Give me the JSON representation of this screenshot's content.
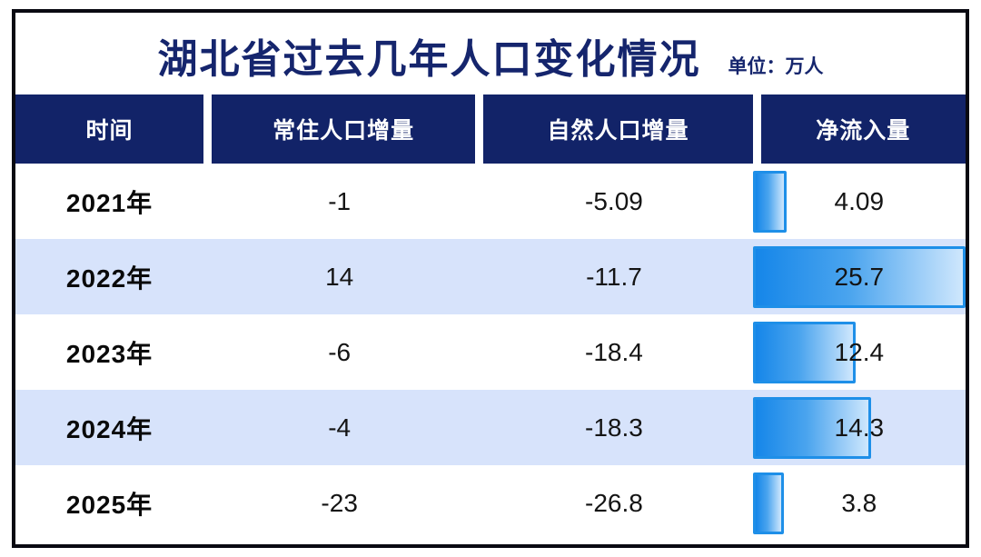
{
  "title_bar": {
    "title": "湖北省过去几年人口变化情况",
    "unit_label": "单位：万人"
  },
  "table": {
    "columns": [
      {
        "label": "时间"
      },
      {
        "label": "常住人口增量"
      },
      {
        "label": "自然人口增量"
      },
      {
        "label": "净流入量"
      }
    ],
    "rows": [
      {
        "year": "2021年",
        "resident_change": "-1",
        "natural_change": "-5.09",
        "net_inflow": "4.09",
        "net_inflow_value": 4.09
      },
      {
        "year": "2022年",
        "resident_change": "14",
        "natural_change": "-11.7",
        "net_inflow": "25.7",
        "net_inflow_value": 25.7
      },
      {
        "year": "2023年",
        "resident_change": "-6",
        "natural_change": "-18.4",
        "net_inflow": "12.4",
        "net_inflow_value": 12.4
      },
      {
        "year": "2024年",
        "resident_change": "-4",
        "natural_change": "-18.3",
        "net_inflow": "14.3",
        "net_inflow_value": 14.3
      },
      {
        "year": "2025年",
        "resident_change": "-23",
        "natural_change": "-26.8",
        "net_inflow": "3.8",
        "net_inflow_value": 3.8
      }
    ],
    "bar_scale_max": 25.7
  },
  "colors": {
    "title_navy": "#15256d",
    "header_bg": "#122368",
    "header_text": "#ffffff",
    "stripe_blue": "#d7e3fb",
    "bar_gradient_start": "#1586e9",
    "bar_gradient_end": "#cfe7fd",
    "bar_border": "#1e8fe8",
    "frame_border": "#0a0a12",
    "body_text": "#141414"
  },
  "chart_data": {
    "type": "table",
    "title": "湖北省过去几年人口变化情况",
    "unit": "万人",
    "columns": [
      "时间",
      "常住人口增量",
      "自然人口增量",
      "净流入量"
    ],
    "rows": [
      [
        "2021年",
        -1,
        -5.09,
        4.09
      ],
      [
        "2022年",
        14,
        -11.7,
        25.7
      ],
      [
        "2023年",
        -6,
        -18.4,
        12.4
      ],
      [
        "2024年",
        -4,
        -18.3,
        14.3
      ],
      [
        "2025年",
        -23,
        -26.8,
        3.8
      ]
    ],
    "embedded_bar_chart": {
      "type": "bar",
      "orientation": "horizontal",
      "column": "净流入量",
      "categories": [
        "2021年",
        "2022年",
        "2023年",
        "2024年",
        "2025年"
      ],
      "values": [
        4.09,
        25.7,
        12.4,
        14.3,
        3.8
      ],
      "xlim": [
        0,
        25.7
      ],
      "bar_color": "blue-gradient"
    }
  }
}
